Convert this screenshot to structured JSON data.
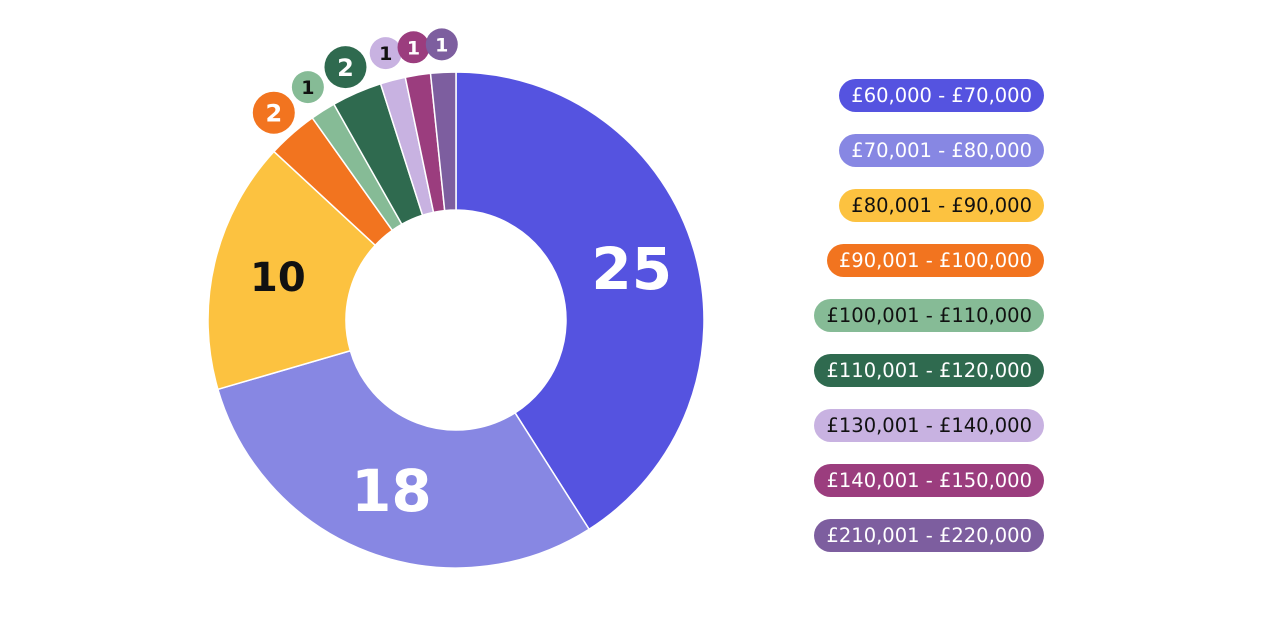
{
  "chart_data": {
    "type": "pie",
    "variant": "donut",
    "title": "",
    "categories": [
      "£60,000 - £70,000",
      "£70,001 - £80,000",
      "£80,001 - £90,000",
      "£90,001 - £100,000",
      "£100,001 - £110,000",
      "£110,001 - £120,000",
      "£130,001 - £140,000",
      "£140,001 - £150,000",
      "£210,001 - £220,000"
    ],
    "values": [
      25,
      18,
      10,
      2,
      1,
      2,
      1,
      1,
      1
    ],
    "colors": [
      "#5553E0",
      "#8787E3",
      "#FCC240",
      "#F2741F",
      "#86BB96",
      "#2F6A4F",
      "#C8B2E1",
      "#9B3D7E",
      "#7D5E9F"
    ],
    "label_text_colors": [
      "#ffffff",
      "#ffffff",
      "#111111",
      "#ffffff",
      "#111111",
      "#ffffff",
      "#111111",
      "#ffffff",
      "#ffffff"
    ],
    "legend_placement": "right"
  }
}
